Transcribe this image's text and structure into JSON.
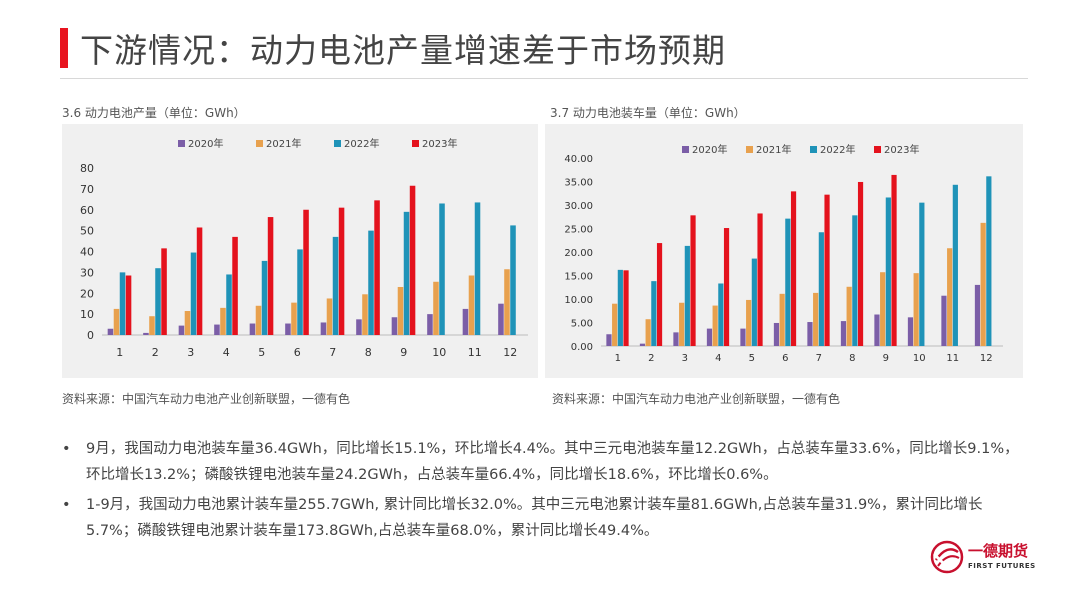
{
  "header": {
    "title": "下游情况：动力电池产量增速差于市场预期"
  },
  "chart_data": [
    {
      "type": "bar",
      "caption": "3.6 动力电池产量（单位：GWh）",
      "source": "资料来源：中国汽车动力电池产业创新联盟，一德有色",
      "categories": [
        "1",
        "2",
        "3",
        "4",
        "5",
        "6",
        "7",
        "8",
        "9",
        "10",
        "11",
        "12"
      ],
      "ylim": [
        0,
        80
      ],
      "yticks": [
        0,
        10,
        20,
        30,
        40,
        50,
        60,
        70,
        80
      ],
      "ytick_labels": [
        "0",
        "10",
        "20",
        "30",
        "40",
        "50",
        "60",
        "70",
        "80"
      ],
      "legend_position": "top",
      "series": [
        {
          "name": "2020年",
          "color": "#7b5ea7",
          "values": [
            3,
            1,
            4.5,
            5,
            5.5,
            5.5,
            6,
            7.5,
            8.5,
            10,
            12.5,
            15
          ]
        },
        {
          "name": "2021年",
          "color": "#e8a14e",
          "values": [
            12.5,
            9,
            11.5,
            13,
            14,
            15.5,
            17.5,
            19.5,
            23,
            25.5,
            28.5,
            31.5
          ]
        },
        {
          "name": "2022年",
          "color": "#1f93b8",
          "values": [
            30,
            32,
            39.5,
            29,
            35.5,
            41,
            47,
            50,
            59,
            63,
            63.5,
            52.5
          ]
        },
        {
          "name": "2023年",
          "color": "#e4121d",
          "values": [
            28.5,
            41.5,
            51.5,
            47,
            56.5,
            60,
            61,
            64.5,
            71.5,
            null,
            null,
            null
          ]
        }
      ]
    },
    {
      "type": "bar",
      "caption": "3.7 动力电池装车量（单位：GWh）",
      "source": "资料来源：中国汽车动力电池产业创新联盟，一德有色",
      "categories": [
        "1",
        "2",
        "3",
        "4",
        "5",
        "6",
        "7",
        "8",
        "9",
        "10",
        "11",
        "12"
      ],
      "ylim": [
        0,
        40
      ],
      "yticks": [
        0,
        5,
        10,
        15,
        20,
        25,
        30,
        35,
        40
      ],
      "ytick_labels": [
        "0.00",
        "5.00",
        "10.00",
        "15.00",
        "20.00",
        "25.00",
        "30.00",
        "35.00",
        "40.00"
      ],
      "legend_position": "top",
      "series": [
        {
          "name": "2020年",
          "color": "#7b5ea7",
          "values": [
            2.5,
            0.5,
            2.9,
            3.7,
            3.7,
            4.9,
            5.1,
            5.3,
            6.7,
            6.1,
            10.7,
            13
          ]
        },
        {
          "name": "2021年",
          "color": "#e8a14e",
          "values": [
            9,
            5.7,
            9.2,
            8.6,
            9.8,
            11.1,
            11.3,
            12.6,
            15.7,
            15.5,
            20.8,
            26.2
          ]
        },
        {
          "name": "2022年",
          "color": "#1f93b8",
          "values": [
            16.2,
            13.8,
            21.3,
            13.3,
            18.6,
            27.1,
            24.2,
            27.8,
            31.6,
            30.5,
            34.3,
            36.1
          ]
        },
        {
          "name": "2023年",
          "color": "#e4121d",
          "values": [
            16.1,
            21.9,
            27.8,
            25.1,
            28.2,
            32.9,
            32.2,
            34.9,
            36.4,
            null,
            null,
            null
          ]
        }
      ]
    }
  ],
  "bullets": [
    {
      "symbol": "•",
      "text": "9月，我国动力电池装车量36.4GWh，同比增长15.1%，环比增长4.4%。其中三元电池装车量12.2GWh，占总装车量33.6%，同比增长9.1%，环比增长13.2%；磷酸铁锂电池装车量24.2GWh，占总装车量66.4%，同比增长18.6%，环比增长0.6%。"
    },
    {
      "symbol": "•",
      "text": "1-9月，我国动力电池累计装车量255.7GWh, 累计同比增长32.0%。其中三元电池累计装车量81.6GWh,占总装车量31.9%，累计同比增长5.7%；磷酸铁锂电池累计装车量173.8GWh,占总装车量68.0%，累计同比增长49.4%。"
    }
  ],
  "logo": {
    "name_cn": "一德期货",
    "name_en": "FIRST FUTURES",
    "color": "#c8102e"
  }
}
